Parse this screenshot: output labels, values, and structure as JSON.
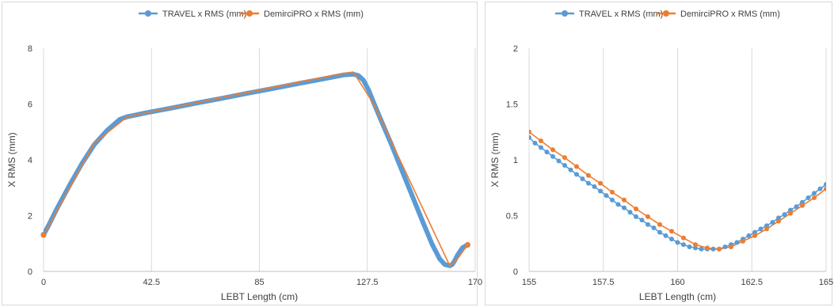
{
  "chart_data": [
    {
      "type": "line",
      "xlabel": "LEBT Length (cm)",
      "ylabel": "X RMS (mm)",
      "xlim": [
        0,
        170
      ],
      "ylim": [
        0,
        8
      ],
      "xticks": [
        "0",
        "42.5",
        "85",
        "127.5",
        "170"
      ],
      "yticks": [
        "0",
        "2",
        "4",
        "6",
        "8"
      ],
      "grid": "vertical",
      "legend": "top",
      "series": [
        {
          "name": "TRAVEL x RMS (mm)",
          "color": "#5b9bd5",
          "marker": "circle",
          "x": [
            0,
            2,
            5,
            10,
            15,
            20,
            25,
            30,
            33,
            36,
            40,
            50,
            60,
            70,
            80,
            90,
            100,
            110,
            118,
            122,
            124,
            126,
            128,
            130,
            133,
            137,
            141,
            145,
            149,
            153,
            156,
            158,
            160,
            161,
            162,
            163,
            165,
            167
          ],
          "y": [
            1.32,
            1.65,
            2.2,
            3.05,
            3.85,
            4.55,
            5.05,
            5.45,
            5.55,
            5.6,
            5.68,
            5.85,
            6.03,
            6.2,
            6.38,
            6.55,
            6.73,
            6.9,
            7.04,
            7.07,
            7.02,
            6.85,
            6.5,
            6.05,
            5.4,
            4.55,
            3.65,
            2.75,
            1.85,
            0.98,
            0.45,
            0.25,
            0.2,
            0.25,
            0.4,
            0.58,
            0.85,
            0.95
          ]
        },
        {
          "name": "DemirciPRO x RMS (mm)",
          "color": "#ed7d31",
          "marker": "circle",
          "x": [
            0,
            20,
            33,
            118,
            122,
            130,
            160,
            163,
            167
          ],
          "y": [
            1.3,
            4.6,
            5.55,
            7.1,
            7.15,
            6.0,
            0.2,
            0.45,
            0.95
          ]
        }
      ]
    },
    {
      "type": "line",
      "xlabel": "LEBT Length (cm)",
      "ylabel": "X RMS (mm)",
      "xlim": [
        155,
        165
      ],
      "ylim": [
        0,
        2
      ],
      "xticks": [
        "155",
        "157.5",
        "160",
        "162.5",
        "165"
      ],
      "yticks": [
        "0",
        "0.5",
        "1",
        "1.5",
        "2"
      ],
      "grid": "vertical",
      "legend": "top",
      "series": [
        {
          "name": "TRAVEL x RMS (mm)",
          "color": "#5b9bd5",
          "marker": "circle",
          "x": [
            155.0,
            155.2,
            155.4,
            155.6,
            155.8,
            156.0,
            156.2,
            156.4,
            156.6,
            156.8,
            157.0,
            157.2,
            157.4,
            157.6,
            157.8,
            158.0,
            158.2,
            158.4,
            158.6,
            158.8,
            159.0,
            159.2,
            159.4,
            159.6,
            159.8,
            160.0,
            160.2,
            160.4,
            160.6,
            160.8,
            161.0,
            161.2,
            161.4,
            161.6,
            161.8,
            162.0,
            162.2,
            162.4,
            162.6,
            162.8,
            163.0,
            163.2,
            163.4,
            163.6,
            163.8,
            164.0,
            164.2,
            164.4,
            164.6,
            164.8,
            165.0
          ],
          "y": [
            1.2,
            1.15,
            1.11,
            1.07,
            1.03,
            0.99,
            0.95,
            0.91,
            0.87,
            0.83,
            0.79,
            0.76,
            0.72,
            0.68,
            0.64,
            0.6,
            0.57,
            0.53,
            0.49,
            0.46,
            0.42,
            0.39,
            0.35,
            0.32,
            0.29,
            0.26,
            0.24,
            0.22,
            0.21,
            0.2,
            0.2,
            0.2,
            0.2,
            0.22,
            0.24,
            0.26,
            0.29,
            0.32,
            0.35,
            0.38,
            0.41,
            0.44,
            0.48,
            0.51,
            0.55,
            0.58,
            0.62,
            0.66,
            0.7,
            0.74,
            0.78
          ]
        },
        {
          "name": "DemirciPRO x RMS (mm)",
          "color": "#ed7d31",
          "marker": "circle",
          "x": [
            155.0,
            155.4,
            155.8,
            156.2,
            156.6,
            157.0,
            157.4,
            157.8,
            158.2,
            158.6,
            159.0,
            159.4,
            159.8,
            160.2,
            160.6,
            161.0,
            161.4,
            161.8,
            162.2,
            162.6,
            163.0,
            163.4,
            163.8,
            164.2,
            164.6,
            165.0
          ],
          "y": [
            1.25,
            1.17,
            1.09,
            1.02,
            0.94,
            0.86,
            0.79,
            0.71,
            0.64,
            0.56,
            0.49,
            0.42,
            0.36,
            0.3,
            0.24,
            0.21,
            0.2,
            0.22,
            0.27,
            0.32,
            0.38,
            0.45,
            0.52,
            0.59,
            0.66,
            0.74
          ]
        }
      ]
    }
  ]
}
